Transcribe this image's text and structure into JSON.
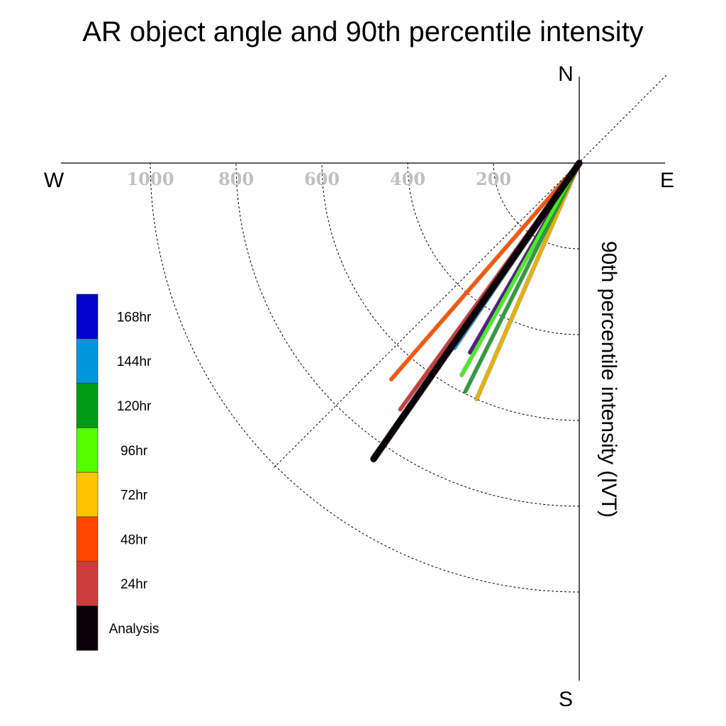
{
  "chart_data": {
    "type": "line",
    "title": "AR object angle and 90th percentile intensity",
    "axis_label": "90th percentile intensity (IVT)",
    "directions": {
      "north": "N",
      "south": "S",
      "east": "E",
      "west": "W"
    },
    "radial_ticks": [
      "1000",
      "800",
      "600",
      "400",
      "200"
    ],
    "radial_tick_values": [
      1000,
      800,
      600,
      400,
      200
    ],
    "rlim": [
      0,
      1000
    ],
    "grid": true,
    "legend_position": "left",
    "series": [
      {
        "name": "168hr",
        "color": "#0000c8",
        "angle_deg": 210,
        "intensity": 510,
        "draw_color": "#5a1a8c"
      },
      {
        "name": "144hr",
        "color": "#0096dc",
        "angle_deg": 214,
        "intensity": 520,
        "draw_color": "#1e9ad6"
      },
      {
        "name": "120hr",
        "color": "#009a14",
        "angle_deg": 206.5,
        "intensity": 595,
        "draw_color": "#2e9c3c"
      },
      {
        "name": "96hr",
        "color": "#55ff00",
        "angle_deg": 209,
        "intensity": 565,
        "draw_color": "#44ee22"
      },
      {
        "name": "72hr",
        "color": "#ffc400",
        "angle_deg": 203.5,
        "intensity": 600,
        "draw_color": "#e8b000"
      },
      {
        "name": "48hr",
        "color": "#ff4600",
        "angle_deg": 221,
        "intensity": 668,
        "draw_color": "#ff5500"
      },
      {
        "name": "24hr",
        "color": "#cc3c3c",
        "angle_deg": 216,
        "intensity": 710,
        "draw_color": "#cc3c3c"
      },
      {
        "name": "Analysis",
        "color": "#0c0008",
        "angle_deg": 214.8,
        "intensity": 840,
        "draw_color": "#0c0008"
      }
    ]
  }
}
